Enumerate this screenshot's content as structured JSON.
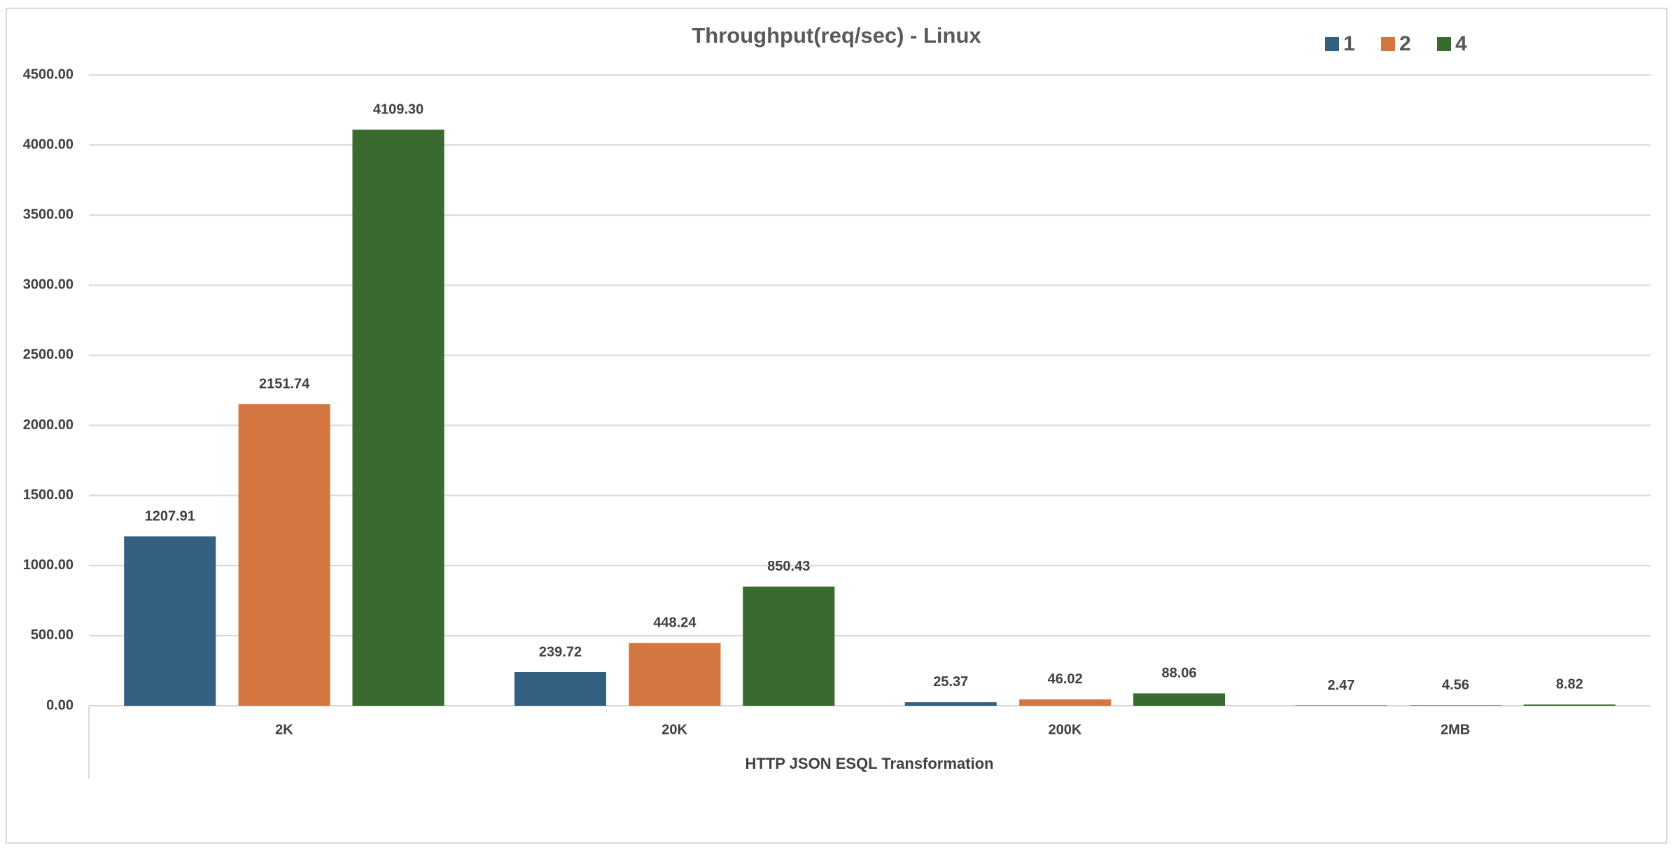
{
  "chart_data": {
    "type": "bar",
    "title": "Throughput(req/sec) - Linux",
    "x_label": "HTTP JSON ESQL Transformation",
    "categories": [
      "2K",
      "20K",
      "200K",
      "2MB"
    ],
    "series": [
      {
        "name": "1",
        "color": "#335f80",
        "values": [
          1207.91,
          239.72,
          25.37,
          2.47
        ],
        "value_labels": [
          "1207.91",
          "239.72",
          "25.37",
          "2.47"
        ]
      },
      {
        "name": "2",
        "color": "#d47640",
        "values": [
          2151.74,
          448.24,
          46.02,
          4.56
        ],
        "value_labels": [
          "2151.74",
          "448.24",
          "46.02",
          "4.56"
        ]
      },
      {
        "name": "4",
        "color": "#3a6b2e",
        "values": [
          4109.3,
          850.43,
          88.06,
          8.82
        ],
        "value_labels": [
          "4109.30",
          "850.43",
          "88.06",
          "8.82"
        ]
      }
    ],
    "ylim": [
      0,
      4500
    ],
    "yticks": [
      {
        "value": 0,
        "label": "0.00"
      },
      {
        "value": 500,
        "label": "500.00"
      },
      {
        "value": 1000,
        "label": "1000.00"
      },
      {
        "value": 1500,
        "label": "1500.00"
      },
      {
        "value": 2000,
        "label": "2000.00"
      },
      {
        "value": 2500,
        "label": "2500.00"
      },
      {
        "value": 3000,
        "label": "3000.00"
      },
      {
        "value": 3500,
        "label": "3500.00"
      },
      {
        "value": 4000,
        "label": "4000.00"
      },
      {
        "value": 4500,
        "label": "4500.00"
      }
    ],
    "grid": true,
    "legend": "top-right"
  }
}
